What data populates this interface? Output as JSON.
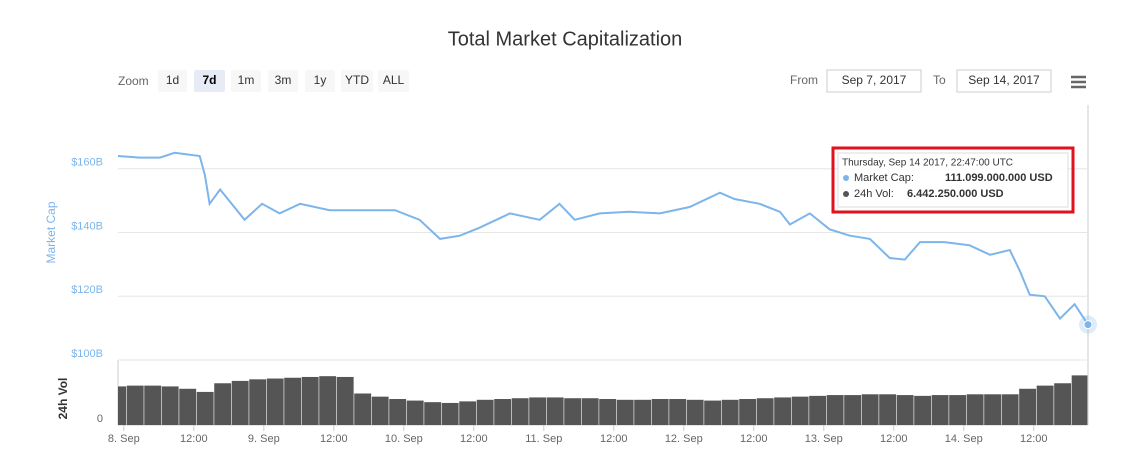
{
  "chart_data": [
    {
      "type": "line",
      "title": "Total Market Capitalization",
      "ylabel": "Market Cap",
      "color": "#7cb5ec",
      "grid": true,
      "xlim": [
        -1.0,
        165.3
      ],
      "ylim": [
        100,
        180
      ],
      "yticks": [
        {
          "value": 100,
          "label": "$100B"
        },
        {
          "value": 120,
          "label": "$120B"
        },
        {
          "value": 140,
          "label": "$140B"
        },
        {
          "value": 160,
          "label": "$160B"
        }
      ],
      "x": [
        -1.0,
        2.7,
        6.2,
        8.7,
        13.0,
        13.9,
        14.7,
        16.5,
        20.7,
        23.7,
        26.7,
        30.2,
        35.3,
        40.5,
        46.5,
        50.7,
        54.2,
        57.6,
        61.0,
        66.2,
        71.3,
        74.7,
        77.3,
        81.6,
        86.7,
        91.9,
        97.0,
        102.2,
        104.7,
        109.0,
        112.5,
        114.2,
        117.6,
        121.0,
        124.5,
        127.9,
        131.3,
        133.9,
        136.5,
        140.7,
        145.0,
        148.5,
        151.9,
        153.6,
        155.3,
        157.9,
        160.5,
        163.0,
        165.3
      ],
      "values": [
        164,
        163.5,
        163.5,
        165,
        164,
        158,
        149,
        153.5,
        144,
        149,
        146,
        149,
        147,
        147,
        147,
        144,
        138,
        139,
        141.5,
        146,
        144,
        149,
        144,
        146,
        146.5,
        146,
        148,
        152.5,
        150.5,
        149,
        146.5,
        142.5,
        146,
        141,
        139,
        138,
        132,
        131.5,
        137,
        137,
        136,
        133,
        134.5,
        128,
        120.5,
        120,
        113,
        117.5,
        111.099
      ]
    },
    {
      "type": "bar",
      "ylabel": "24h Vol",
      "color": "#555555",
      "grid": false,
      "xlim": [
        -1.0,
        165.3
      ],
      "ylim": [
        0,
        8
      ],
      "yticks": [
        0
      ],
      "xticks": [
        {
          "value": 0,
          "label": "8. Sep"
        },
        {
          "value": 12,
          "label": "12:00"
        },
        {
          "value": 24,
          "label": "9. Sep"
        },
        {
          "value": 36,
          "label": "12:00"
        },
        {
          "value": 48,
          "label": "10. Sep"
        },
        {
          "value": 60,
          "label": "12:00"
        },
        {
          "value": 72,
          "label": "11. Sep"
        },
        {
          "value": 84,
          "label": "12:00"
        },
        {
          "value": 96,
          "label": "12. Sep"
        },
        {
          "value": 108,
          "label": "12:00"
        },
        {
          "value": 120,
          "label": "13. Sep"
        },
        {
          "value": 132,
          "label": "12:00"
        },
        {
          "value": 144,
          "label": "14. Sep"
        },
        {
          "value": 156,
          "label": "12:00"
        }
      ],
      "x": [
        -1,
        2,
        5,
        8,
        11,
        14,
        17,
        20,
        23,
        26,
        29,
        32,
        35,
        38,
        41,
        44,
        47,
        50,
        53,
        56,
        59,
        62,
        65,
        68,
        71,
        74,
        77,
        80,
        83,
        86,
        89,
        92,
        95,
        98,
        101,
        104,
        107,
        110,
        113,
        116,
        119,
        122,
        125,
        128,
        131,
        134,
        137,
        140,
        143,
        146,
        149,
        152,
        155,
        158,
        161,
        164
      ],
      "values": [
        4.9,
        5.0,
        5.0,
        4.9,
        4.6,
        4.2,
        5.3,
        5.6,
        5.8,
        5.9,
        6.0,
        6.1,
        6.2,
        6.1,
        4.0,
        3.6,
        3.3,
        3.1,
        2.9,
        2.8,
        3.0,
        3.2,
        3.3,
        3.4,
        3.5,
        3.5,
        3.4,
        3.4,
        3.3,
        3.2,
        3.2,
        3.3,
        3.3,
        3.2,
        3.1,
        3.2,
        3.3,
        3.4,
        3.5,
        3.6,
        3.7,
        3.8,
        3.8,
        3.9,
        3.9,
        3.8,
        3.7,
        3.8,
        3.8,
        3.9,
        3.9,
        3.9,
        4.6,
        5.0,
        5.3,
        6.3
      ]
    }
  ],
  "controls": {
    "zoom_label": "Zoom",
    "ranges": [
      "1d",
      "7d",
      "1m",
      "3m",
      "1y",
      "YTD",
      "ALL"
    ],
    "from_label": "From",
    "from_date": "Sep 7, 2017",
    "to_label": "To",
    "to_date": "Sep 14, 2017"
  },
  "tooltip": {
    "date": "Thursday, Sep 14 2017, 22:47:00 UTC",
    "items": [
      {
        "label": "Market Cap:",
        "value": "111.099.000.000 USD"
      },
      {
        "label": "24h Vol:",
        "value": "6.442.250.000 USD"
      }
    ]
  }
}
